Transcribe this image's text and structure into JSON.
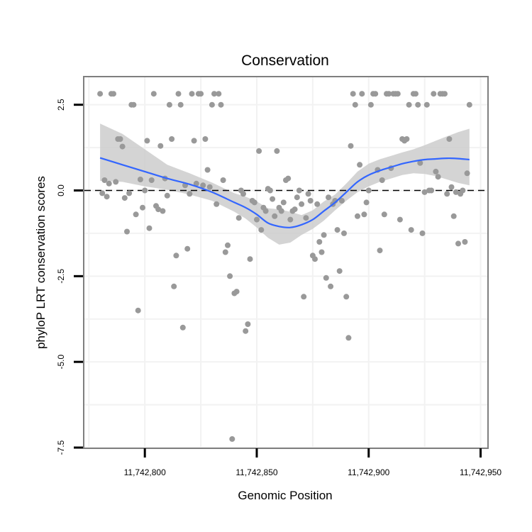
{
  "chart_data": {
    "type": "scatter",
    "title": "Conservation",
    "xlabel": "Genomic Position",
    "ylabel": "phyloP LRT conservation scores",
    "xlim": [
      11742773,
      11742953
    ],
    "ylim": [
      -7.5,
      3.3
    ],
    "x_ticks": [
      11742800,
      11742850,
      11742900,
      11742950
    ],
    "x_tick_labels": [
      "11,742,800",
      "11,742,850",
      "11,742,900",
      "11,742,950"
    ],
    "y_ticks": [
      2.5,
      0.0,
      -2.5,
      -5.0,
      -7.5
    ],
    "y_tick_labels": [
      "2.5",
      "0.0",
      "-2.5",
      "-5.0",
      "-7.5"
    ],
    "reference_line_y": 0.0,
    "point_color": "#999999",
    "smooth_color": "#3366ff",
    "band_color": "#cccccc",
    "points": [
      [
        11742780,
        2.82
      ],
      [
        11742781,
        -0.08
      ],
      [
        11742782,
        0.3
      ],
      [
        11742783,
        -0.18
      ],
      [
        11742784,
        0.2
      ],
      [
        11742785,
        2.82
      ],
      [
        11742786,
        2.82
      ],
      [
        11742787,
        0.25
      ],
      [
        11742788,
        1.5
      ],
      [
        11742789,
        1.5
      ],
      [
        11742790,
        1.28
      ],
      [
        11742791,
        -0.22
      ],
      [
        11742792,
        -1.2
      ],
      [
        11742793,
        -0.08
      ],
      [
        11742794,
        2.5
      ],
      [
        11742795,
        2.5
      ],
      [
        11742796,
        -0.7
      ],
      [
        11742797,
        -3.5
      ],
      [
        11742798,
        0.32
      ],
      [
        11742799,
        -0.5
      ],
      [
        11742800,
        0.0
      ],
      [
        11742801,
        1.45
      ],
      [
        11742802,
        -1.1
      ],
      [
        11742803,
        0.3
      ],
      [
        11742804,
        2.82
      ],
      [
        11742805,
        -0.45
      ],
      [
        11742806,
        -0.55
      ],
      [
        11742807,
        1.3
      ],
      [
        11742808,
        -0.6
      ],
      [
        11742809,
        0.35
      ],
      [
        11742810,
        -0.15
      ],
      [
        11742811,
        2.5
      ],
      [
        11742812,
        1.5
      ],
      [
        11742813,
        -2.8
      ],
      [
        11742814,
        -1.9
      ],
      [
        11742815,
        2.82
      ],
      [
        11742816,
        2.5
      ],
      [
        11742817,
        -4.0
      ],
      [
        11742818,
        0.15
      ],
      [
        11742819,
        -1.7
      ],
      [
        11742820,
        -0.1
      ],
      [
        11742821,
        2.82
      ],
      [
        11742822,
        1.45
      ],
      [
        11742823,
        0.2
      ],
      [
        11742824,
        2.82
      ],
      [
        11742825,
        2.82
      ],
      [
        11742826,
        0.15
      ],
      [
        11742827,
        1.5
      ],
      [
        11742828,
        0.6
      ],
      [
        11742829,
        0.1
      ],
      [
        11742830,
        2.5
      ],
      [
        11742831,
        2.82
      ],
      [
        11742832,
        -0.4
      ],
      [
        11742833,
        2.82
      ],
      [
        11742834,
        2.5
      ],
      [
        11742835,
        0.3
      ],
      [
        11742836,
        -1.8
      ],
      [
        11742837,
        -1.6
      ],
      [
        11742838,
        -2.5
      ],
      [
        11742839,
        -7.25
      ],
      [
        11742840,
        -3.0
      ],
      [
        11742841,
        -2.95
      ],
      [
        11742842,
        -0.8
      ],
      [
        11742843,
        0.0
      ],
      [
        11742844,
        -0.1
      ],
      [
        11742845,
        -4.1
      ],
      [
        11742846,
        -3.9
      ],
      [
        11742847,
        -2.0
      ],
      [
        11742848,
        -0.3
      ],
      [
        11742849,
        -0.35
      ],
      [
        11742850,
        -0.85
      ],
      [
        11742851,
        1.15
      ],
      [
        11742852,
        -1.15
      ],
      [
        11742853,
        -0.5
      ],
      [
        11742854,
        -0.6
      ],
      [
        11742855,
        0.05
      ],
      [
        11742856,
        0.0
      ],
      [
        11742857,
        -0.25
      ],
      [
        11742858,
        -0.75
      ],
      [
        11742859,
        1.15
      ],
      [
        11742860,
        -0.5
      ],
      [
        11742861,
        -0.6
      ],
      [
        11742862,
        -0.35
      ],
      [
        11742863,
        0.3
      ],
      [
        11742864,
        0.35
      ],
      [
        11742865,
        -0.85
      ],
      [
        11742866,
        -0.6
      ],
      [
        11742867,
        -0.55
      ],
      [
        11742868,
        -0.2
      ],
      [
        11742869,
        0.0
      ],
      [
        11742870,
        -0.4
      ],
      [
        11742871,
        -3.1
      ],
      [
        11742872,
        -0.8
      ],
      [
        11742873,
        -0.1
      ],
      [
        11742874,
        -0.3
      ],
      [
        11742875,
        -1.9
      ],
      [
        11742876,
        -2.0
      ],
      [
        11742877,
        -0.4
      ],
      [
        11742878,
        -1.5
      ],
      [
        11742879,
        -1.8
      ],
      [
        11742880,
        -1.3
      ],
      [
        11742881,
        -2.55
      ],
      [
        11742882,
        -0.2
      ],
      [
        11742883,
        -2.8
      ],
      [
        11742884,
        -0.4
      ],
      [
        11742885,
        -0.3
      ],
      [
        11742886,
        -1.15
      ],
      [
        11742887,
        -2.35
      ],
      [
        11742888,
        -0.3
      ],
      [
        11742889,
        -1.25
      ],
      [
        11742890,
        -3.1
      ],
      [
        11742891,
        -4.3
      ],
      [
        11742892,
        1.3
      ],
      [
        11742893,
        2.82
      ],
      [
        11742894,
        2.5
      ],
      [
        11742895,
        -0.75
      ],
      [
        11742896,
        0.75
      ],
      [
        11742897,
        2.82
      ],
      [
        11742898,
        -0.7
      ],
      [
        11742899,
        -0.35
      ],
      [
        11742900,
        0.0
      ],
      [
        11742901,
        2.5
      ],
      [
        11742902,
        2.82
      ],
      [
        11742903,
        2.82
      ],
      [
        11742904,
        0.6
      ],
      [
        11742905,
        -1.75
      ],
      [
        11742906,
        0.3
      ],
      [
        11742907,
        -0.7
      ],
      [
        11742908,
        2.82
      ],
      [
        11742909,
        2.82
      ],
      [
        11742910,
        0.65
      ],
      [
        11742911,
        2.82
      ],
      [
        11742912,
        2.82
      ],
      [
        11742913,
        2.82
      ],
      [
        11742914,
        -0.85
      ],
      [
        11742915,
        1.5
      ],
      [
        11742916,
        1.45
      ],
      [
        11742917,
        1.5
      ],
      [
        11742918,
        2.5
      ],
      [
        11742919,
        -1.15
      ],
      [
        11742920,
        2.82
      ],
      [
        11742921,
        2.82
      ],
      [
        11742922,
        2.5
      ],
      [
        11742923,
        0.8
      ],
      [
        11742924,
        -1.25
      ],
      [
        11742925,
        -0.05
      ],
      [
        11742926,
        2.5
      ],
      [
        11742927,
        0.0
      ],
      [
        11742928,
        0.0
      ],
      [
        11742929,
        2.82
      ],
      [
        11742930,
        0.55
      ],
      [
        11742931,
        0.4
      ],
      [
        11742932,
        2.82
      ],
      [
        11742933,
        2.82
      ],
      [
        11742934,
        2.82
      ],
      [
        11742935,
        -0.1
      ],
      [
        11742936,
        1.5
      ],
      [
        11742937,
        0.1
      ],
      [
        11742938,
        -0.75
      ],
      [
        11742939,
        -0.05
      ],
      [
        11742940,
        -1.55
      ],
      [
        11742941,
        -0.1
      ],
      [
        11742942,
        0.0
      ],
      [
        11742943,
        -1.5
      ],
      [
        11742944,
        0.5
      ],
      [
        11742945,
        2.5
      ]
    ],
    "smooth": {
      "x": [
        11742780,
        11742790,
        11742800,
        11742810,
        11742820,
        11742830,
        11742840,
        11742845,
        11742850,
        11742855,
        11742860,
        11742865,
        11742870,
        11742875,
        11742880,
        11742885,
        11742890,
        11742895,
        11742900,
        11742905,
        11742910,
        11742915,
        11742920,
        11742925,
        11742930,
        11742935,
        11742940,
        11742945
      ],
      "y": [
        0.95,
        0.75,
        0.55,
        0.35,
        0.18,
        -0.05,
        -0.35,
        -0.5,
        -0.7,
        -0.95,
        -1.05,
        -1.08,
        -1.0,
        -0.85,
        -0.6,
        -0.35,
        -0.05,
        0.25,
        0.45,
        0.58,
        0.68,
        0.78,
        0.85,
        0.9,
        0.92,
        0.94,
        0.93,
        0.9
      ],
      "lower": [
        0.28,
        0.25,
        0.12,
        0.02,
        -0.12,
        -0.3,
        -0.62,
        -0.82,
        -1.08,
        -1.38,
        -1.58,
        -1.52,
        -1.3,
        -1.12,
        -0.88,
        -0.58,
        -0.3,
        -0.05,
        0.12,
        0.25,
        0.35,
        0.45,
        0.5,
        0.48,
        0.42,
        0.32,
        0.22,
        0.15
      ],
      "upper": [
        1.95,
        1.65,
        1.2,
        0.75,
        0.5,
        0.23,
        -0.08,
        -0.18,
        -0.32,
        -0.52,
        -0.55,
        -0.62,
        -0.72,
        -0.58,
        -0.32,
        -0.12,
        0.2,
        0.55,
        0.78,
        0.91,
        1.01,
        1.11,
        1.2,
        1.32,
        1.45,
        1.58,
        1.7,
        1.8
      ]
    }
  }
}
